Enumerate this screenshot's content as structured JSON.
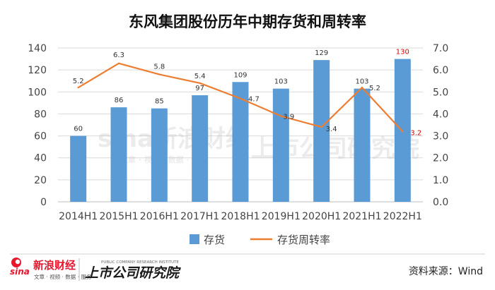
{
  "chart_data": {
    "type": "bar+line",
    "title": "东风集团股份历年中期存货和周转率",
    "categories": [
      "2014H1",
      "2015H1",
      "2016H1",
      "2017H1",
      "2018H1",
      "2019H1",
      "2020H1",
      "2021H1",
      "2022H1"
    ],
    "series": [
      {
        "name": "存货",
        "axis": "left",
        "type": "bar",
        "color": "#5b9bd5",
        "values": [
          60,
          86,
          85,
          97,
          109,
          103,
          129,
          103,
          130
        ]
      },
      {
        "name": "存货周转率",
        "axis": "right",
        "type": "line",
        "color": "#ed7d31",
        "values": [
          5.2,
          6.3,
          5.8,
          5.4,
          4.7,
          3.9,
          3.4,
          5.2,
          3.2
        ]
      }
    ],
    "left_axis": {
      "min": 0,
      "max": 140,
      "step": 20,
      "ticks": [
        "0",
        "20",
        "40",
        "60",
        "80",
        "100",
        "120",
        "140"
      ]
    },
    "right_axis": {
      "min": 0,
      "max": 7,
      "step": 1,
      "ticks": [
        "0.0",
        "1.0",
        "2.0",
        "3.0",
        "4.0",
        "5.0",
        "6.0",
        "7.0"
      ]
    },
    "bar_labels": [
      "60",
      "86",
      "85",
      "97",
      "109",
      "103",
      "129",
      "103",
      "130"
    ],
    "line_labels": [
      "5.2",
      "6.3",
      "5.8",
      "5.4",
      "4.7",
      "3.9",
      "3.4",
      "5.2",
      "3.2"
    ],
    "highlight_color": "#e00000",
    "grid": true,
    "legend_position": "bottom"
  },
  "footer": {
    "brand_name": "新浪财经",
    "brand_tagline": "文章 · 视频 · 数据 · 服务",
    "institute_name": "上市公司研究院",
    "institute_en": "PUBLIC COMPANY RESEARCH INSTITUTE",
    "source_text": "资料来源：Wind"
  },
  "watermark": {
    "sina_text": "sina新浪财经",
    "sina_sub": "文章 · 视频 · 数据 · 服务",
    "institute_text": "上市公司研究院"
  }
}
